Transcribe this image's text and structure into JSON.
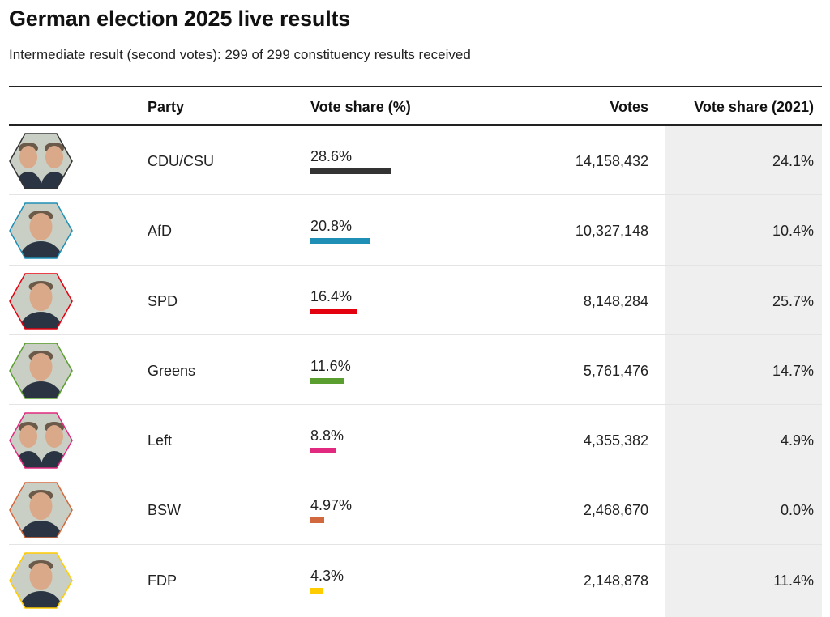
{
  "title": "German election 2025 live results",
  "subtitle": "Intermediate result (second votes): 299 of 299 constituency results received",
  "headers": {
    "party": "Party",
    "vote_share": "Vote share (%)",
    "votes": "Votes",
    "vote_share_prev": "Vote share (2021)"
  },
  "chart_data": {
    "type": "table",
    "columns": [
      "Party",
      "Vote share (%)",
      "Votes",
      "Vote share (2021)"
    ],
    "rows": [
      {
        "party": "CDU/CSU",
        "share": 28.6,
        "share_label": "28.6%",
        "votes": "14,158,432",
        "prev": "24.1%",
        "color": "#333333",
        "portraits": 2
      },
      {
        "party": "AfD",
        "share": 20.8,
        "share_label": "20.8%",
        "votes": "10,327,148",
        "prev": "10.4%",
        "color": "#1f8fb5",
        "portraits": 1
      },
      {
        "party": "SPD",
        "share": 16.4,
        "share_label": "16.4%",
        "votes": "8,148,284",
        "prev": "25.7%",
        "color": "#e3000f",
        "portraits": 1
      },
      {
        "party": "Greens",
        "share": 11.6,
        "share_label": "11.6%",
        "votes": "5,761,476",
        "prev": "14.7%",
        "color": "#5a9e2f",
        "portraits": 1
      },
      {
        "party": "Left",
        "share": 8.8,
        "share_label": "8.8%",
        "votes": "4,355,382",
        "prev": "4.9%",
        "color": "#e0297f",
        "portraits": 2
      },
      {
        "party": "BSW",
        "share": 4.97,
        "share_label": "4.97%",
        "votes": "2,468,670",
        "prev": "0.0%",
        "color": "#d2693e",
        "portraits": 1
      },
      {
        "party": "FDP",
        "share": 4.3,
        "share_label": "4.3%",
        "votes": "2,148,878",
        "prev": "11.4%",
        "color": "#ffcc00",
        "portraits": 1
      }
    ]
  }
}
